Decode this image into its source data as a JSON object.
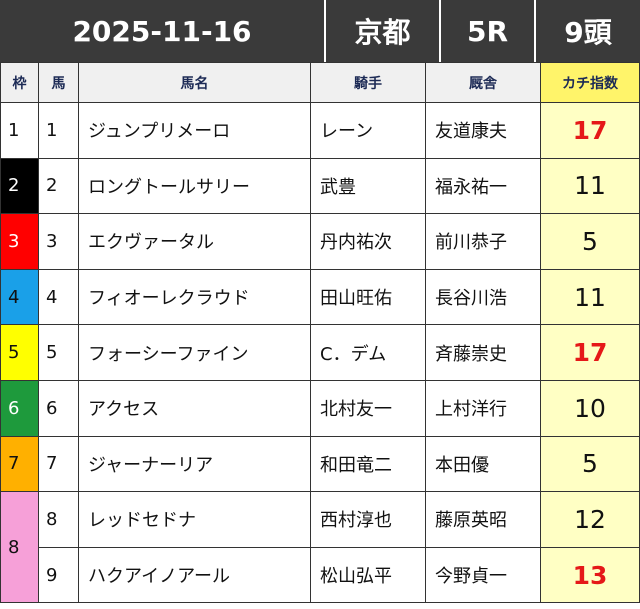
{
  "header": {
    "date": "2025-11-16",
    "venue": "京都",
    "race": "5R",
    "count": "9頭"
  },
  "columns": [
    "枠",
    "馬",
    "馬名",
    "騎手",
    "厩舎",
    "カチ指数"
  ],
  "rows": [
    {
      "waku": "1",
      "num": "1",
      "horse": "ジュンプリメーロ",
      "jockey": "レーン",
      "stable": "友道康夫",
      "score": "17"
    },
    {
      "waku": "2",
      "num": "2",
      "horse": "ロングトールサリー",
      "jockey": "武豊",
      "stable": "福永祐一",
      "score": "11"
    },
    {
      "waku": "3",
      "num": "3",
      "horse": "エクヴァータル",
      "jockey": "丹内祐次",
      "stable": "前川恭子",
      "score": "5"
    },
    {
      "waku": "4",
      "num": "4",
      "horse": "フィオーレクラウド",
      "jockey": "田山旺佑",
      "stable": "長谷川浩",
      "score": "11"
    },
    {
      "waku": "5",
      "num": "5",
      "horse": "フォーシーファイン",
      "jockey": "C．デム",
      "stable": "斉藤崇史",
      "score": "17"
    },
    {
      "waku": "6",
      "num": "6",
      "horse": "アクセス",
      "jockey": "北村友一",
      "stable": "上村洋行",
      "score": "10"
    },
    {
      "waku": "7",
      "num": "7",
      "horse": "ジャーナーリア",
      "jockey": "和田竜二",
      "stable": "本田優",
      "score": "5"
    },
    {
      "waku": "8",
      "num": "8",
      "horse": "レッドセドナ",
      "jockey": "西村淳也",
      "stable": "藤原英昭",
      "score": "12"
    },
    {
      "waku": "",
      "num": "9",
      "horse": "ハクアイノアール",
      "jockey": "松山弘平",
      "stable": "今野貞一",
      "score": "13"
    }
  ],
  "colors": {
    "header_bg": "#3a3a3a",
    "kachi_header": "#fff46a",
    "score_bg": "#ffffc4",
    "score_highlight": "#e51818",
    "waku": [
      "#ffffff",
      "#000000",
      "#ff0000",
      "#1aa0e8",
      "#ffff00",
      "#1e9a3c",
      "#ffb000",
      "#f6a0d8"
    ]
  }
}
